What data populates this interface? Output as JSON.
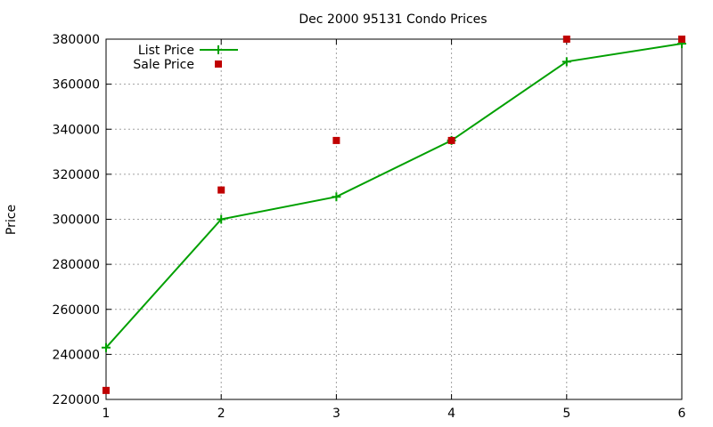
{
  "chart_data": {
    "type": "line",
    "title": "Dec 2000 95131 Condo Prices",
    "xlabel": "",
    "ylabel": "Price",
    "x": [
      1,
      2,
      3,
      4,
      5,
      6
    ],
    "xlim": [
      1,
      6
    ],
    "ylim": [
      220000,
      380000
    ],
    "xticks": [
      "1",
      "2",
      "3",
      "4",
      "5",
      "6"
    ],
    "yticks": [
      "220000",
      "240000",
      "260000",
      "280000",
      "300000",
      "320000",
      "340000",
      "360000",
      "380000"
    ],
    "grid": true,
    "legend_position": "top-left",
    "series": [
      {
        "name": "List Price",
        "style": "line+cross",
        "color": "#00a000",
        "values": [
          243000,
          300000,
          310000,
          335000,
          370000,
          378000
        ]
      },
      {
        "name": "Sale Price",
        "style": "square",
        "color": "#c00000",
        "values": [
          224000,
          313000,
          335000,
          335000,
          380000,
          380000
        ]
      }
    ]
  }
}
